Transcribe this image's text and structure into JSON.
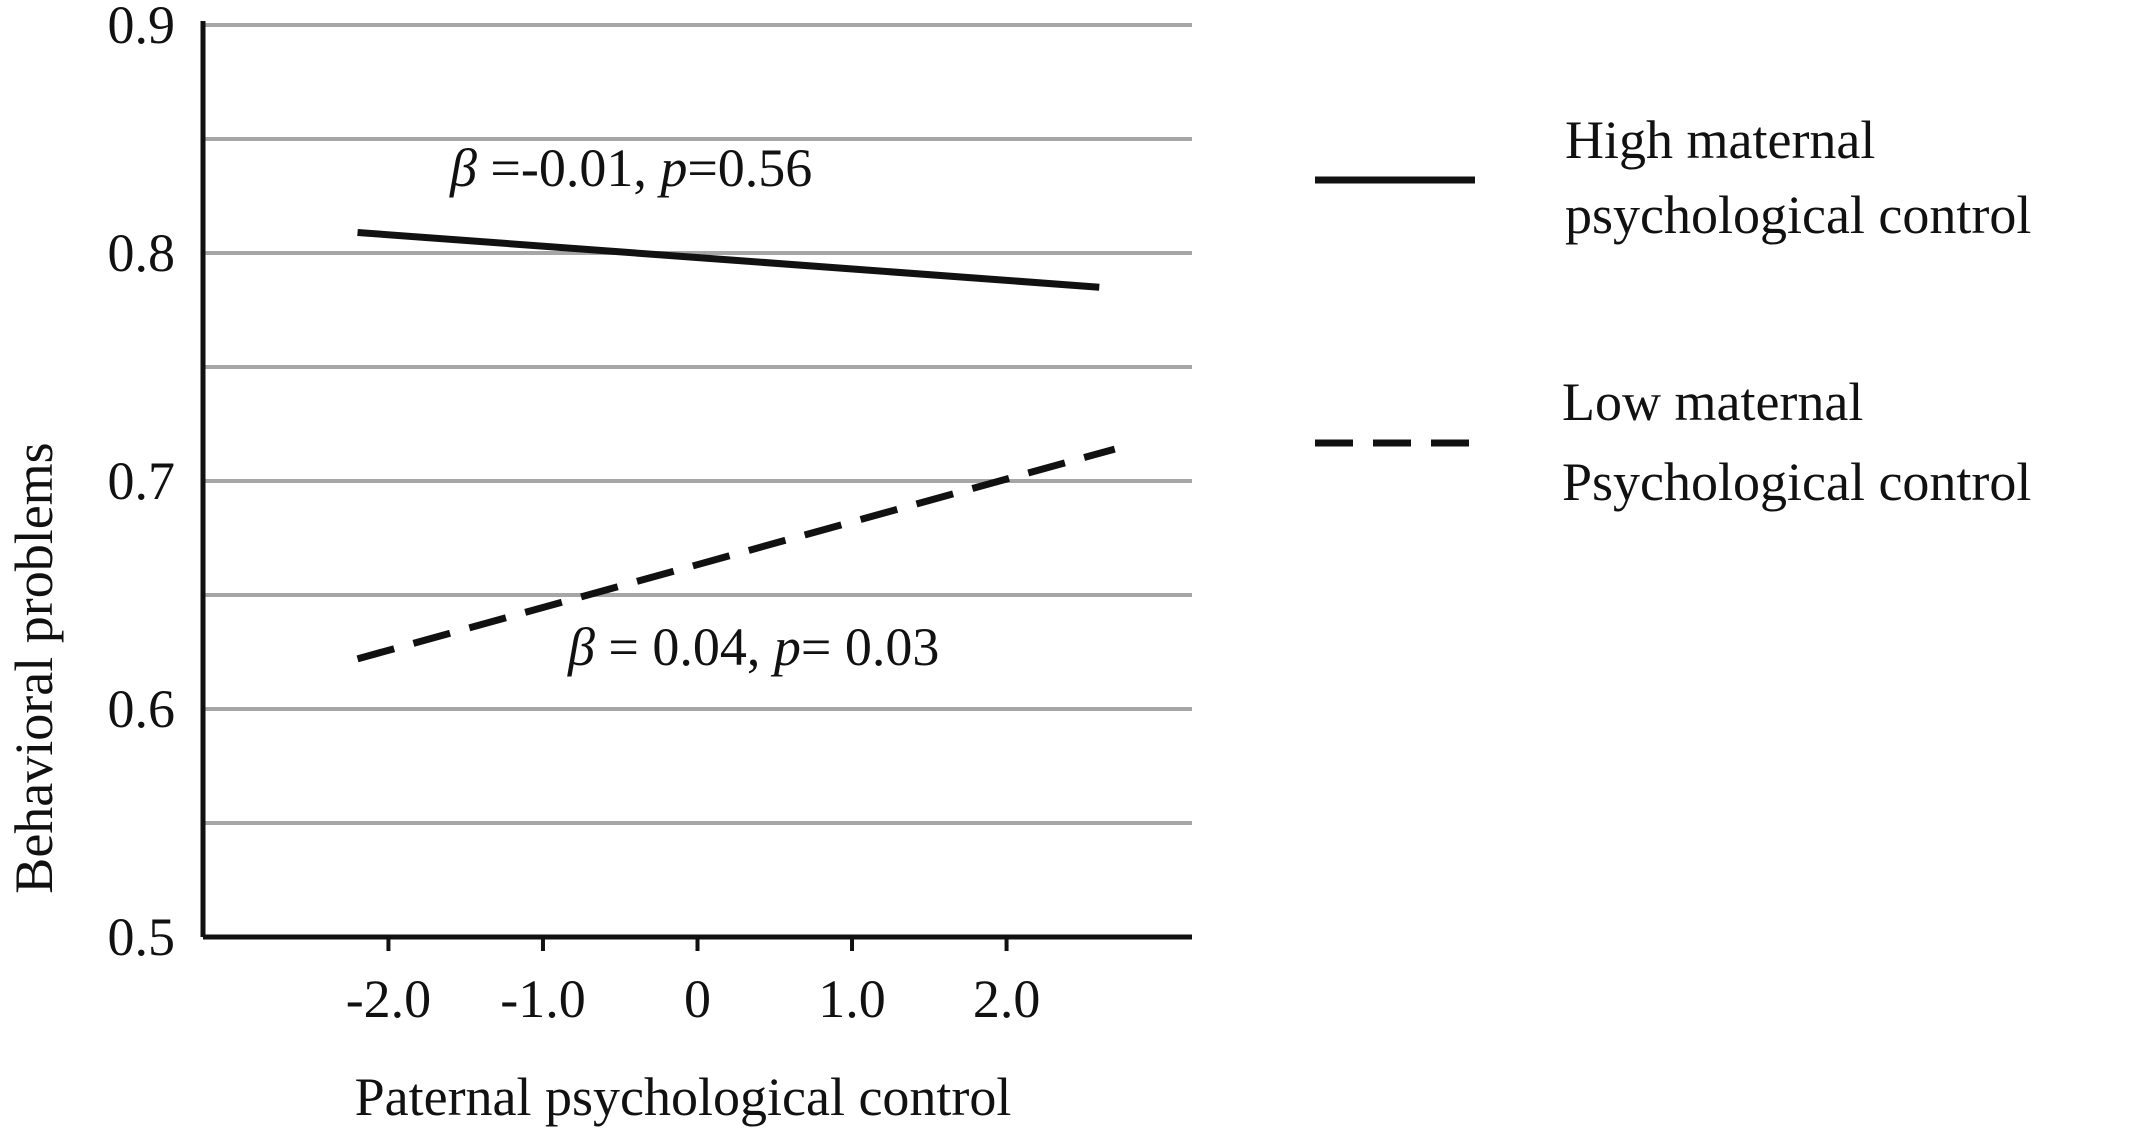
{
  "chart_data": {
    "type": "line",
    "title": "",
    "xlabel": "Paternal psychological control",
    "ylabel": "Behavioral problems",
    "xlim": [
      -3.2,
      3.2
    ],
    "ylim": [
      0.5,
      0.9
    ],
    "x_ticks": [
      -2.0,
      -1.0,
      0,
      1.0,
      2.0
    ],
    "x_tick_labels": [
      "-2.0",
      "-1.0",
      "0",
      "1.0",
      "2.0"
    ],
    "y_ticks": [
      0.5,
      0.6,
      0.7,
      0.8,
      0.9
    ],
    "y_tick_labels": [
      "0.5",
      "0.6",
      "0.7",
      "0.8",
      "0.9"
    ],
    "gridlines_y": [
      0.55,
      0.6,
      0.65,
      0.7,
      0.75,
      0.8,
      0.85,
      0.9
    ],
    "grid": true,
    "legend_position": "right",
    "series": [
      {
        "name": "High maternal psychological control",
        "legend_lines": [
          "High maternal",
          "psychological control"
        ],
        "style": "solid",
        "color": "#111111",
        "x": [
          -2.2,
          2.6
        ],
        "y": [
          0.809,
          0.785
        ]
      },
      {
        "name": "Low maternal Psychological control",
        "legend_lines": [
          "Low maternal",
          "Psychological control"
        ],
        "style": "dashed",
        "color": "#111111",
        "x": [
          -2.2,
          2.7
        ],
        "y": [
          0.622,
          0.714
        ]
      }
    ],
    "annotations": [
      {
        "beta": "β",
        "beta_rest": " =-0.01, ",
        "p": "p",
        "p_rest": "=0.56"
      },
      {
        "beta": "β",
        "beta_rest": " = 0.04, ",
        "p": "p",
        "p_rest": "= 0.03"
      }
    ]
  }
}
